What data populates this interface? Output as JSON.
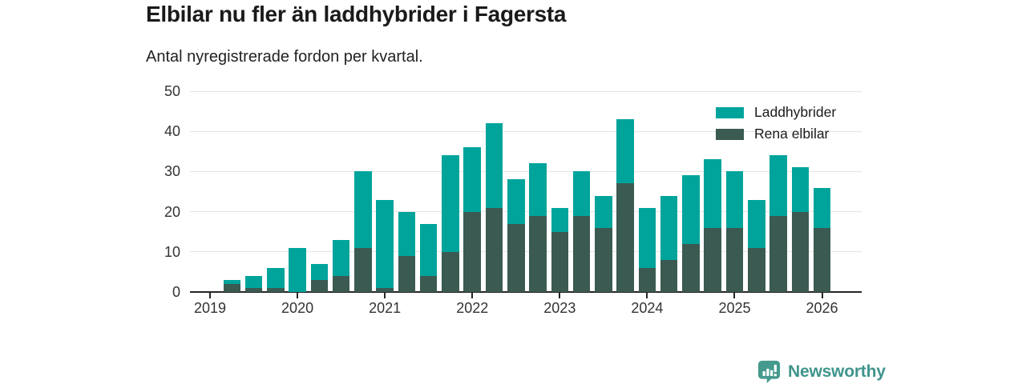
{
  "title": "Elbilar nu fler än laddhybrider i Fagersta",
  "subtitle": "Antal nyregistrerade fordon per kvartal.",
  "legend": {
    "items": [
      {
        "label": "Laddhybrider",
        "color": "#00a49b"
      },
      {
        "label": "Rena elbilar",
        "color": "#3b5a52"
      }
    ]
  },
  "footer": {
    "brand": "Newsworthy",
    "logo_icon": "bar-chart-bubble-icon",
    "brand_color": "#3f948c",
    "logo_color": "#459a8e"
  },
  "chart_data": {
    "type": "bar",
    "stacked": true,
    "title": "Elbilar nu fler än laddhybrider i Fagersta",
    "subtitle": "Antal nyregistrerade fordon per kvartal.",
    "xlabel": "",
    "ylabel": "",
    "ylim": [
      0,
      50
    ],
    "yticks": [
      0,
      10,
      20,
      30,
      40,
      50
    ],
    "grid": "horizontal-only",
    "legend_position": "top-right",
    "categories": [
      "2019 Q1",
      "2019 Q2",
      "2019 Q3",
      "2019 Q4",
      "2020 Q1",
      "2020 Q2",
      "2020 Q3",
      "2020 Q4",
      "2021 Q1",
      "2021 Q2",
      "2021 Q3",
      "2021 Q4",
      "2022 Q1",
      "2022 Q2",
      "2022 Q3",
      "2022 Q4",
      "2023 Q1",
      "2023 Q2",
      "2023 Q3",
      "2023 Q4",
      "2024 Q1",
      "2024 Q2",
      "2024 Q3",
      "2024 Q4",
      "2025 Q1",
      "2025 Q2",
      "2025 Q3",
      "2025 Q4",
      "2026 Q1"
    ],
    "x_year_ticks": [
      "2019",
      "2020",
      "2021",
      "2022",
      "2023",
      "2024",
      "2025",
      "2026"
    ],
    "series": [
      {
        "name": "Rena elbilar",
        "color": "#3b5a52",
        "values": [
          0,
          2,
          1,
          1,
          0,
          3,
          4,
          11,
          1,
          9,
          4,
          10,
          20,
          21,
          17,
          19,
          15,
          19,
          16,
          27,
          6,
          8,
          12,
          16,
          16,
          11,
          19,
          20,
          16
        ]
      },
      {
        "name": "Laddhybrider",
        "color": "#00a49b",
        "values": [
          0,
          1,
          3,
          5,
          11,
          4,
          9,
          19,
          22,
          11,
          13,
          24,
          16,
          21,
          11,
          13,
          6,
          11,
          8,
          16,
          15,
          16,
          17,
          17,
          14,
          12,
          15,
          11,
          10
        ]
      }
    ],
    "totals": [
      0,
      3,
      4,
      6,
      11,
      7,
      13,
      30,
      23,
      20,
      17,
      34,
      36,
      42,
      28,
      32,
      21,
      30,
      24,
      43,
      21,
      24,
      29,
      33,
      30,
      23,
      34,
      31,
      26
    ]
  }
}
